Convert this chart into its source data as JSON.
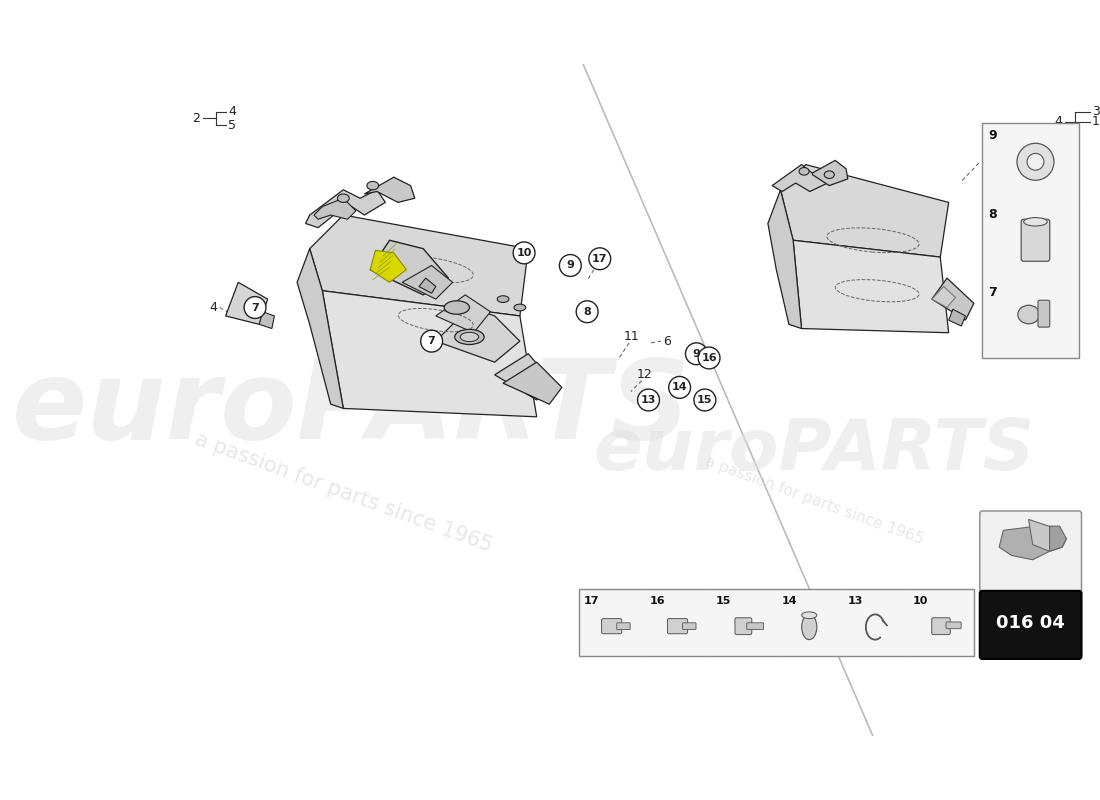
{
  "bg_color": "#ffffff",
  "watermark_text1": "euroPARTS",
  "watermark_text2": "a passion for parts since 1965",
  "diagram_code": "016 04",
  "line_color": "#222222",
  "bubble_font_size": 8,
  "label_font_size": 9,
  "accent_color": "#d8d800",
  "panel_bg": "#f5f5f5",
  "panel_border": "#888888",
  "code_bg": "#111111",
  "code_text": "#ffffff",
  "right_panel_items": [
    "9",
    "8",
    "7"
  ],
  "bottom_panel_items": [
    "17",
    "16",
    "15",
    "14",
    "13",
    "10"
  ]
}
